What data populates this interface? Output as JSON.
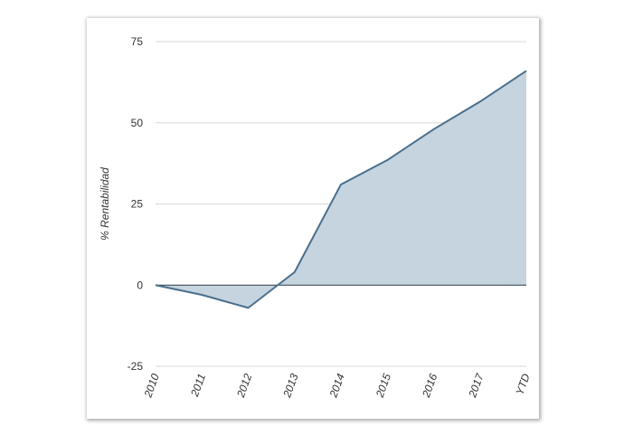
{
  "chart_data": {
    "type": "area",
    "title": "",
    "xlabel": "",
    "ylabel": "% Rentabilidad",
    "categories": [
      "2010",
      "2011",
      "2012",
      "2013",
      "2014",
      "2015",
      "2016",
      "2017",
      "YTD"
    ],
    "series": [
      {
        "values": [
          0,
          -3,
          -7,
          4,
          31,
          38.5,
          48,
          56.5,
          66
        ]
      }
    ],
    "ylim": [
      -25,
      75
    ],
    "yticks": [
      -25,
      0,
      25,
      50,
      75
    ],
    "grid": true,
    "legend": "none",
    "colors": {
      "line": "#4a6f8c",
      "fill": "#c6d4df",
      "grid": "#d8d8d8",
      "zero_line": "#2b3a4a"
    }
  }
}
